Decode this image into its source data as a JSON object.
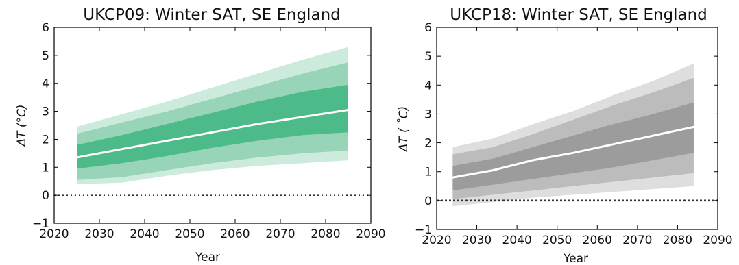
{
  "chart_data": [
    {
      "type": "area",
      "title": "UKCP09: Winter SAT, SE England",
      "xlabel": "Year",
      "ylabel": "ΔT (°C)",
      "xlim": [
        2020,
        2090
      ],
      "ylim": [
        -1,
        6
      ],
      "xticks": [
        2020,
        2030,
        2040,
        2050,
        2060,
        2070,
        2080,
        2090
      ],
      "yticks": [
        -1,
        0,
        1,
        2,
        3,
        4,
        5,
        6
      ],
      "grid": false,
      "zero_line": "dotted",
      "x": [
        2025,
        2035,
        2045,
        2055,
        2065,
        2075,
        2085
      ],
      "band_colors": [
        "#cdebdc",
        "#98d5b8",
        "#4dbb89"
      ],
      "median_color": "#ffffff",
      "bands": [
        {
          "lower": [
            0.4,
            0.45,
            0.7,
            0.9,
            1.05,
            1.15,
            1.25
          ],
          "upper": [
            2.45,
            2.9,
            3.35,
            3.85,
            4.35,
            4.85,
            5.3
          ]
        },
        {
          "lower": [
            0.55,
            0.65,
            0.9,
            1.15,
            1.35,
            1.5,
            1.6
          ],
          "upper": [
            2.2,
            2.6,
            3.0,
            3.45,
            3.9,
            4.35,
            4.75
          ]
        },
        {
          "lower": [
            0.95,
            1.15,
            1.4,
            1.7,
            1.95,
            2.15,
            2.25
          ],
          "upper": [
            1.8,
            2.15,
            2.55,
            2.95,
            3.35,
            3.7,
            3.95
          ]
        }
      ],
      "median": [
        1.35,
        1.65,
        1.95,
        2.25,
        2.55,
        2.8,
        3.05
      ]
    },
    {
      "type": "area",
      "title": "UKCP18: Winter SAT, SE England",
      "xlabel": "Year",
      "ylabel": "ΔT ( ˚C)",
      "xlim": [
        2020,
        2090
      ],
      "ylim": [
        -1,
        6
      ],
      "xticks": [
        2020,
        2030,
        2040,
        2050,
        2060,
        2070,
        2080,
        2090
      ],
      "yticks": [
        -1,
        0,
        1,
        2,
        3,
        4,
        5,
        6
      ],
      "grid": false,
      "zero_line": "dotted",
      "x": [
        2024,
        2034,
        2044,
        2054,
        2064,
        2074,
        2084
      ],
      "band_colors": [
        "#dedede",
        "#bcbcbc",
        "#9c9c9c"
      ],
      "median_color": "#ffffff",
      "bands": [
        {
          "lower": [
            -0.2,
            -0.05,
            0.1,
            0.2,
            0.3,
            0.4,
            0.5
          ],
          "upper": [
            1.85,
            2.15,
            2.65,
            3.1,
            3.65,
            4.15,
            4.75
          ]
        },
        {
          "lower": [
            0.05,
            0.2,
            0.35,
            0.5,
            0.65,
            0.8,
            0.95
          ],
          "upper": [
            1.6,
            1.85,
            2.3,
            2.8,
            3.3,
            3.75,
            4.25
          ]
        },
        {
          "lower": [
            0.35,
            0.55,
            0.75,
            0.95,
            1.15,
            1.4,
            1.65
          ],
          "upper": [
            1.2,
            1.45,
            1.85,
            2.25,
            2.65,
            3.0,
            3.4
          ]
        }
      ],
      "median": [
        0.8,
        1.05,
        1.4,
        1.65,
        1.95,
        2.25,
        2.55
      ]
    }
  ]
}
